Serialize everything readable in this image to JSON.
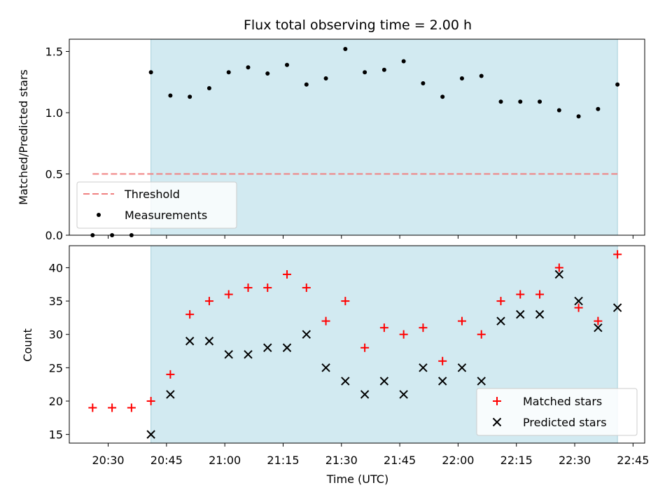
{
  "chart_data": [
    {
      "type": "scatter",
      "title": "Flux total observing time = 2.00 h",
      "ylabel": "Matched/Predicted stars",
      "xlabel": "",
      "xlim": [
        "20:20",
        "22:48"
      ],
      "ylim": [
        0.0,
        1.6
      ],
      "x_ticks": [
        "20:30",
        "20:45",
        "21:00",
        "21:15",
        "21:30",
        "21:45",
        "22:00",
        "22:15",
        "22:30",
        "22:45"
      ],
      "y_ticks": [
        "0.0",
        "0.5",
        "1.0",
        "1.5"
      ],
      "shaded_region": {
        "start": "20:41",
        "end": "22:41",
        "color": "#add8e6"
      },
      "legend_position": "lower-left",
      "series": [
        {
          "name": "Threshold",
          "style": "dashed-line",
          "color": "#f08080",
          "x": [
            "20:26",
            "22:41"
          ],
          "values": [
            0.5,
            0.5
          ]
        },
        {
          "name": "Measurements",
          "style": "dot",
          "color": "#000000",
          "x": [
            "20:26",
            "20:31",
            "20:36",
            "20:41",
            "20:46",
            "20:51",
            "20:56",
            "21:01",
            "21:06",
            "21:11",
            "21:16",
            "21:21",
            "21:26",
            "21:31",
            "21:36",
            "21:41",
            "21:46",
            "21:51",
            "21:56",
            "22:01",
            "22:06",
            "22:11",
            "22:16",
            "22:21",
            "22:26",
            "22:31",
            "22:36",
            "22:41"
          ],
          "values": [
            0.0,
            0.0,
            0.0,
            1.33,
            1.14,
            1.13,
            1.2,
            1.33,
            1.37,
            1.32,
            1.39,
            1.23,
            1.28,
            1.52,
            1.33,
            1.35,
            1.42,
            1.24,
            1.13,
            1.28,
            1.3,
            1.09,
            1.09,
            1.09,
            1.02,
            0.97,
            1.03,
            1.23
          ]
        }
      ]
    },
    {
      "type": "scatter",
      "title": "",
      "ylabel": "Count",
      "xlabel": "Time (UTC)",
      "xlim": [
        "20:20",
        "22:48"
      ],
      "ylim": [
        13.7,
        43.3
      ],
      "x_ticks": [
        "20:30",
        "20:45",
        "21:00",
        "21:15",
        "21:30",
        "21:45",
        "22:00",
        "22:15",
        "22:30",
        "22:45"
      ],
      "y_ticks": [
        "15",
        "20",
        "25",
        "30",
        "35",
        "40"
      ],
      "shaded_region": {
        "start": "20:41",
        "end": "22:41",
        "color": "#add8e6"
      },
      "legend_position": "lower-right",
      "series": [
        {
          "name": "Matched stars",
          "marker": "+",
          "color": "#ff0000",
          "x": [
            "20:26",
            "20:31",
            "20:36",
            "20:41",
            "20:46",
            "20:51",
            "20:56",
            "21:01",
            "21:06",
            "21:11",
            "21:16",
            "21:21",
            "21:26",
            "21:31",
            "21:36",
            "21:41",
            "21:46",
            "21:51",
            "21:56",
            "22:01",
            "22:06",
            "22:11",
            "22:16",
            "22:21",
            "22:26",
            "22:31",
            "22:36",
            "22:41"
          ],
          "values": [
            19,
            19,
            19,
            20,
            24,
            33,
            35,
            36,
            37,
            37,
            39,
            37,
            32,
            35,
            28,
            31,
            30,
            31,
            26,
            32,
            30,
            35,
            36,
            36,
            40,
            34,
            32,
            42
          ]
        },
        {
          "name": "Predicted stars",
          "marker": "x",
          "color": "#000000",
          "x": [
            "20:41",
            "20:46",
            "20:51",
            "20:56",
            "21:01",
            "21:06",
            "21:11",
            "21:16",
            "21:21",
            "21:26",
            "21:31",
            "21:36",
            "21:41",
            "21:46",
            "21:51",
            "21:56",
            "22:01",
            "22:06",
            "22:11",
            "22:16",
            "22:21",
            "22:26",
            "22:31",
            "22:36",
            "22:41"
          ],
          "values": [
            15,
            21,
            29,
            29,
            27,
            27,
            28,
            28,
            30,
            25,
            23,
            21,
            23,
            21,
            25,
            23,
            25,
            23,
            32,
            33,
            33,
            39,
            35,
            31,
            34
          ]
        }
      ]
    }
  ]
}
